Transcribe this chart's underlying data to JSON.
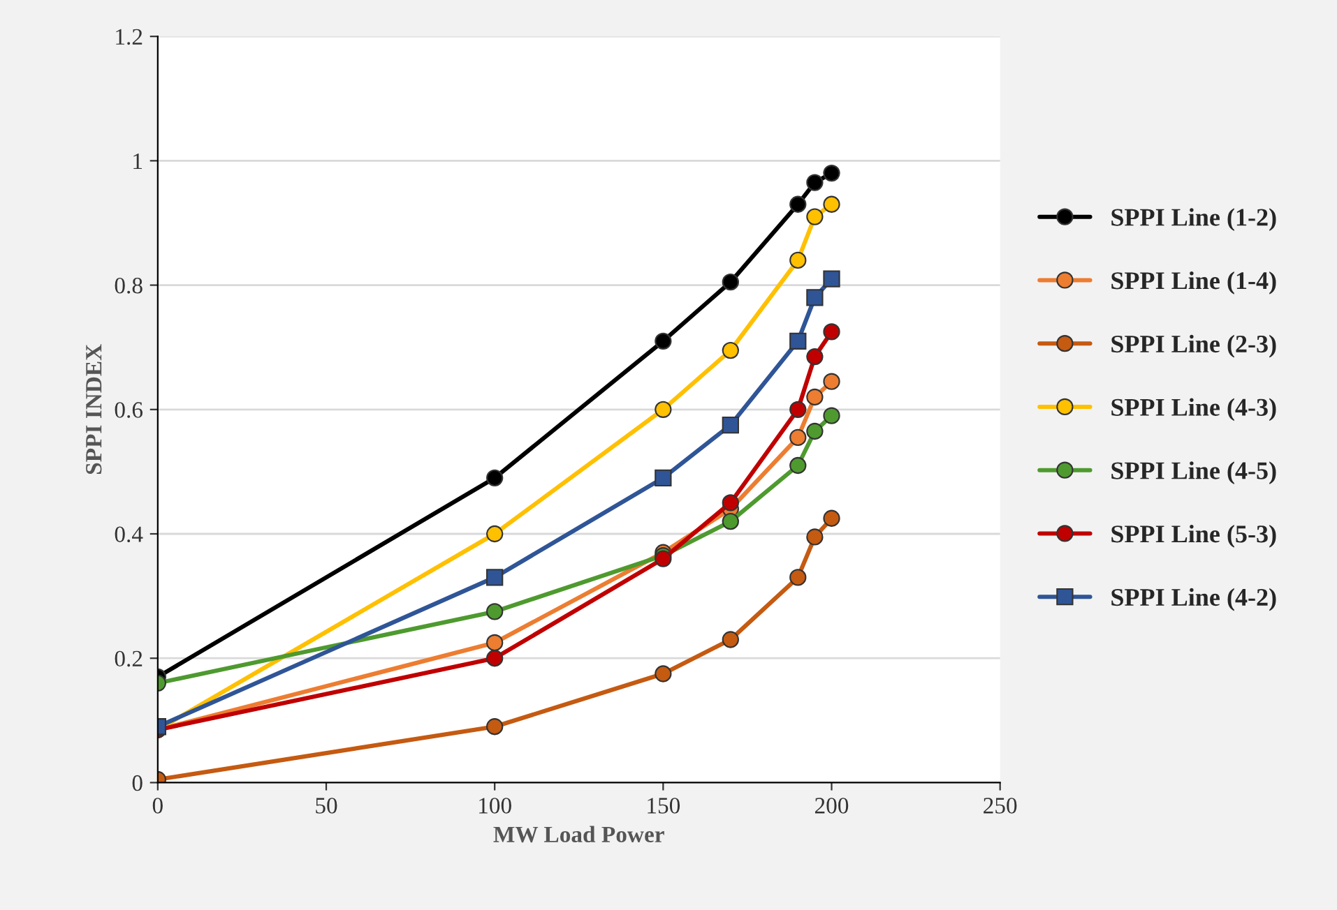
{
  "chart_data": {
    "type": "line",
    "xlabel": "MW Load Power",
    "ylabel": "SPPI INDEX",
    "x": [
      0,
      100,
      150,
      170,
      190,
      195,
      200
    ],
    "xlim": [
      0,
      250
    ],
    "xticks": [
      0,
      50,
      100,
      150,
      200,
      250
    ],
    "ylim": [
      0,
      1.2
    ],
    "yticks": [
      0,
      0.2,
      0.4,
      0.6,
      0.8,
      1,
      1.2
    ],
    "grid": "y",
    "legend": "right",
    "marker": "circle",
    "line_style": "solid",
    "series": [
      {
        "name": "SPPI Line (1-2)",
        "color": "#000000",
        "values": [
          0.17,
          0.49,
          0.71,
          0.805,
          0.93,
          0.965,
          0.98
        ]
      },
      {
        "name": "SPPI Line (1-4)",
        "color": "#ed7d31",
        "values": [
          0.085,
          0.225,
          0.37,
          0.44,
          0.555,
          0.62,
          0.645
        ]
      },
      {
        "name": "SPPI Line (2-3)",
        "color": "#c55a11",
        "values": [
          0.005,
          0.09,
          0.175,
          0.23,
          0.33,
          0.395,
          0.425
        ]
      },
      {
        "name": "SPPI Line (4-3)",
        "color": "#ffc000",
        "values": [
          0.085,
          0.4,
          0.6,
          0.695,
          0.84,
          0.91,
          0.93
        ]
      },
      {
        "name": "SPPI Line (4-5)",
        "color": "#4e9a2f",
        "values": [
          0.16,
          0.275,
          0.365,
          0.42,
          0.51,
          0.565,
          0.59
        ]
      },
      {
        "name": "SPPI Line (5-3)",
        "color": "#c00000",
        "values": [
          0.085,
          0.2,
          0.36,
          0.45,
          0.6,
          0.685,
          0.725
        ]
      },
      {
        "name": "SPPI Line (4-2)",
        "color": "#2f5597",
        "marker": "square",
        "values": [
          0.09,
          0.33,
          0.49,
          0.575,
          0.71,
          0.78,
          0.81
        ]
      }
    ]
  }
}
